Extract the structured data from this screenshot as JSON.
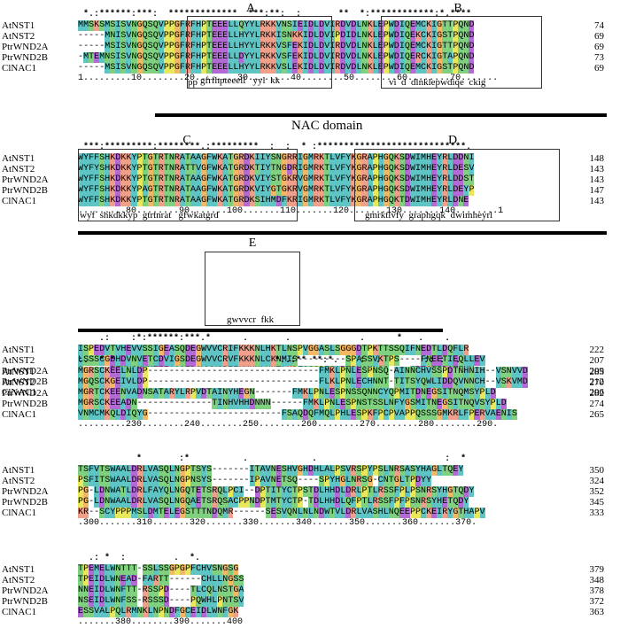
{
  "names": [
    "AtNST1",
    "AtNST2",
    "PtrWND2A",
    "PtrWND2B",
    "ClNAC1"
  ],
  "nac_domain_label": "NAC domain",
  "colors": {
    "cyan": "#5ec4c4",
    "green": "#7fd07f",
    "magenta": "#b46ad6",
    "yellow": "#e8e85a",
    "salmon": "#f0a08a",
    "orange": "#f2b866",
    "gray": "#c4c4c4",
    "white": "#ffffff"
  },
  "blocks": [
    {
      "conservation": " *.:******:***:  *************  ***:**:  :       **  *:************:*.****",
      "ruler": "1.........10........20........30........40........50........60........70.......",
      "rows": [
        {
          "seq": "MMSKSMSISVNGQSQVPPGFRFHPTEEELLQYYLRKKVNSIEIDLDVIRDVDLNKLEPWDIQEMCKIGTTPQND",
          "num": "74"
        },
        {
          "seq": "-----MNISVNGQSQVPPGFRFHPTEEELLHYYLRKKISNKKIDLDVIPDIDLNKLEPWDIQEKCKIGSTPQND",
          "num": "69"
        },
        {
          "seq": "-----MSISVNGQSQVPPGFRFHPTEEELLHYYLRKKVSFEKIDLDVIRDVDLNKLEPWDIQEMCKIGTTPQND",
          "num": "69"
        },
        {
          "seq": "-MTEMNSISVNGQSQVPPGFRFHPTEEELLDYYLRKKVSFEKIDLDVIRDVDLNKLEPWDIQERCKIGTAPQND",
          "num": "73"
        },
        {
          "seq": "-----MSISVNGQSQVPPGFRFHPTEEELLHYYLRKKVSLEKIDLDVIRDVDLNKLEPWDIQEMCKIGSTPQND",
          "num": "69"
        }
      ],
      "motif_a": "pp",
      "motif_a2": "gfrfhpteeell   yyl  kk",
      "motif_b": "vi  d  dlnklepwdiqe  ckig",
      "box_a_label": "A",
      "box_b_label": "B"
    },
    {
      "conservation": " ***:*********:********.:*********  :  :  * :****************************.   ",
      "ruler": ".........80........90.......100.......110.......120.......130.......140........1",
      "rows": [
        {
          "seq": "WYFFSHKDKKYPTGTRTNRATAAGFWKATGRDKIIYSNGRRIGMRKTLVFYKGRAPHGQKSDWIMHEYRLDDNI",
          "num": "148"
        },
        {
          "seq": "WYFYSHKDKKYPTGTRTNRATTVGFWKATGRDKTIYTNGDRIGMRKTLVFYKGRAPHGQKSDWIMHEYRLDESV",
          "num": "143"
        },
        {
          "seq": "WYFFSHKDKKYPTGTRTNRATAAGFWKATGRDKVIYSTGKRVGMRKTLVFYKGRAPHGQKSDWIMHEYRLDDST",
          "num": "143"
        },
        {
          "seq": "WYFFSHKDKKYPAGTRTNRATAAGFWKATGRDKVIYGTGKRVGMRKTLVFYKGRAPHGQKSDWIMHEYRLDEYP",
          "num": "147"
        },
        {
          "seq": "WYFFSHKDKKYPTGTRTNRATAAGFWKATGRDKSIHMDFKRIGMRKTLVFYKGRAPHGQKTDWIMHEYRLDNE",
          "num": "143"
        }
      ],
      "motif_c": "wyf  shkdkkyp  gtrtnrat   gfwkatgrd",
      "motif_d": "gmrktlvfy  graphgqk  dwimheyrl",
      "box_c_label": "C",
      "box_d_label": "D"
    },
    {
      "conservation": "    .:    :*:******:***.*      .       .             .      *   .    .      ",
      "ruler": "50........160........170.......180.......190.......200.......210.......220.",
      "rows": [
        {
          "seq": "ISPEDVTVHEVVSSIGEASQDEGWVVCRIFKKKNLHKTLNSPVGGASLSGGGDTPKTTSSQIFNEDTLDQFLR",
          "num": "222"
        },
        {
          "seq": "LSSSCGDHDVNVETCDVIGSDEGWVVCRVFKKKNLCKNMIS---------SPASSVKTPS----FNEETIEQLLEV",
          "num": "207"
        },
        {
          "seq": "S-----DTNVSNVMEEEAAQEDGWVVCRIFKKKNLNKTLKPFSSSPISADTRNQMLSS----CDEGTIDQTFHY",
          "num": "209"
        },
        {
          "seq": "S-----ETNVSNVMG-EAAQEDGWVVCRIFKKKNLNKTLRAMSSSPITADTRNQTLSS----CNEGSLDQMLHY",
          "num": "212"
        },
        {
          "seq": "N-----SQANAFNELQDEQDGWVVCRVFKKKNHFKGNESPPPNLSKNKFISEMECLN--PGAEQMQYTATEQ",
          "num": "206"
        }
      ],
      "motif_e": "gwvvcr  fkk",
      "box_e_label": "E"
    },
    {
      "conservation": ":.  * *                              *:.:** **:*.    :  .        :: :  .       ",
      "ruler": ".........230........240........250........260........270........280........290.",
      "rows": [
        {
          "seq": "MGRSCKEELNLDP--------------------------------FMKLPNLESPNSQ-AINNCHVSSPDTNHNIH--VSNVVD",
          "num": "285"
        },
        {
          "seq": "MGQSCKGEIVLDP--------------------------------FLKLPNLECHNNT-TITSYQWLIDDQVNNCH--VSKVMD",
          "num": "270"
        },
        {
          "seq": "MGRTCKEENVADNSATARYLRPVDTAINYHEGN-------FMKLPNLESPNSSQNNCYQPMITDNEGSITNQMSYPLD",
          "num": "282"
        },
        {
          "seq": "MGRSCKEEADN--------------TINHVHHDNNN------FMKLPNLESPNSTSSLNFYGSMITNEGSITNQVSYPLD",
          "num": "274"
        },
        {
          "seq": "VNMCMKQLDIQYG-------------------------FSAQDQFMQLPHLESPKFPCPVAPPQSSSGMKRLFPERVAENIS",
          "num": "265"
        }
      ]
    },
    {
      "conservation": "           *       :*          .            .                        :  *",
      "ruler": ".300.......310.......320.......330.......340.......350.......360.......370.",
      "rows": [
        {
          "seq": "TSFVTSWAALDRLVASQLNGPTSYS-------ITAVNESHVGHDHLALPSVRSPYPSLNRSASYHAGLTQEY",
          "num": "350"
        },
        {
          "seq": "PSFITSWAALDRLVASQLNGPNSYS-------IPAVNETSQ----SPYHGLNRSG-CNTGLTPDYY",
          "num": "324"
        },
        {
          "seq": "PG-LDNWATLDRLFAYQLNGQTETSRQLPCI--DPTITYCTPSTDLHHDLDRLPTLRSSFPLPSNRSYHGTQDY",
          "num": "352"
        },
        {
          "seq": "PG-LDNWAALDRLVASQLNGQAETSRQSACPPNDPTMTYCTP-TDLHHDLQFPTLRSSFPFPSNRSYHETQDY",
          "num": "345"
        },
        {
          "seq": "KR--SCYPPPMSLDMTELEGSTTTNDQMR------SESVQNLNLNDWTVLDRLVASHLNQEEPPCKEIRYGTHAPV",
          "num": "333"
        }
      ]
    },
    {
      "conservation": "  .: *  :         .  *.",
      "ruler": ".......380........390.......400",
      "rows": [
        {
          "seq": "TPEMELWNTTT-SSLSSGPGPFCHVSNGSG",
          "num": "379"
        },
        {
          "seq": "TPEIDLWNEAD-FARTT------CHLLNGSS",
          "num": "348"
        },
        {
          "seq": "NNEIDLWNFTT-RSSPD----TLCQLNSTGA",
          "num": "378"
        },
        {
          "seq": "NSEIDLWNFSS-RSSSD----PQWHLPNTSV",
          "num": "372"
        },
        {
          "seq": "ESSVALPQLRMNKLNPNDFGCEIDLWNFGK",
          "num": "363"
        }
      ]
    }
  ]
}
